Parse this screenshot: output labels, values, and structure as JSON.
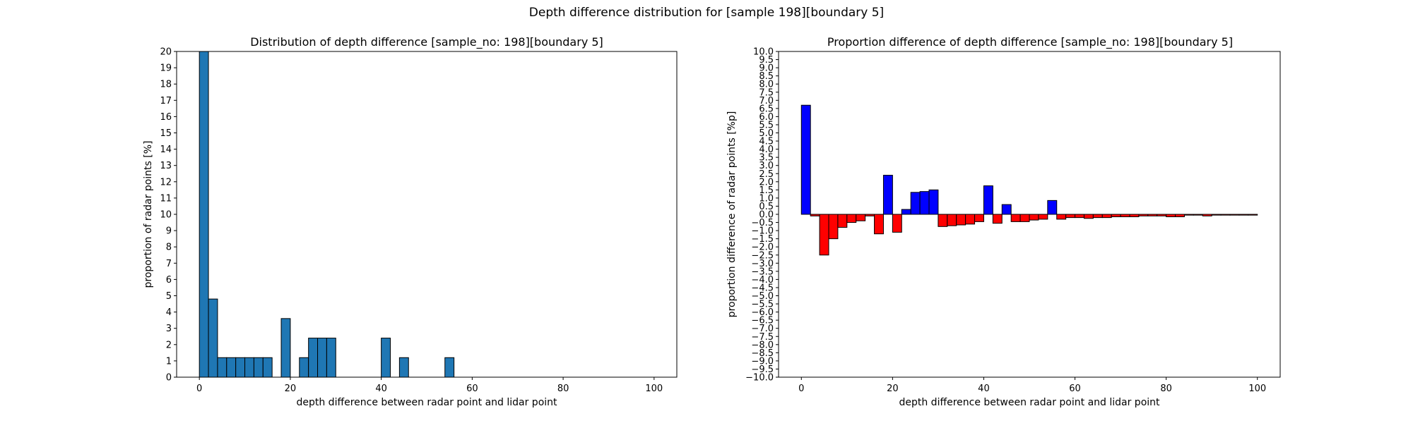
{
  "figure": {
    "suptitle": "Depth difference distribution for [sample 198][boundary 5]"
  },
  "chart_data": [
    {
      "type": "bar",
      "title": "Distribution of depth difference [sample_no: 198][boundary 5]",
      "xlabel": "depth difference between radar point and lidar point",
      "ylabel": "proportion of radar points [%]",
      "xlim": [
        -5,
        105
      ],
      "ylim": [
        0,
        20
      ],
      "xticks": [
        0,
        20,
        40,
        60,
        80,
        100
      ],
      "yticks": [
        0,
        1,
        2,
        3,
        4,
        5,
        6,
        7,
        8,
        9,
        10,
        11,
        12,
        13,
        14,
        15,
        16,
        17,
        18,
        19,
        20
      ],
      "bin_width": 2,
      "bar_color": "#1f77b4",
      "edge_color": "#000000",
      "grid": false,
      "bins": [
        0,
        2,
        4,
        6,
        8,
        10,
        12,
        14,
        18,
        22,
        24,
        26,
        28,
        40,
        44,
        54
      ],
      "values": [
        20.0,
        4.8,
        1.2,
        1.2,
        1.2,
        1.2,
        1.2,
        1.2,
        3.6,
        1.2,
        2.4,
        2.4,
        2.4,
        2.4,
        1.2,
        1.2
      ]
    },
    {
      "type": "bar",
      "title": "Proportion difference of depth difference [sample_no: 198][boundary 5]",
      "xlabel": "depth difference between radar point and lidar point",
      "ylabel": "proportion difference of radar points [%p]",
      "xlim": [
        -5,
        105
      ],
      "ylim": [
        -10,
        10
      ],
      "xticks": [
        0,
        20,
        40,
        60,
        80,
        100
      ],
      "yticks": [
        -10.0,
        -9.5,
        -9.0,
        -8.5,
        -8.0,
        -7.5,
        -7.0,
        -6.5,
        -6.0,
        -5.5,
        -5.0,
        -4.5,
        -4.0,
        -3.5,
        -3.0,
        -2.5,
        -2.0,
        -1.5,
        -1.0,
        -0.5,
        0.0,
        0.5,
        1.0,
        1.5,
        2.0,
        2.5,
        3.0,
        3.5,
        4.0,
        4.5,
        5.0,
        5.5,
        6.0,
        6.5,
        7.0,
        7.5,
        8.0,
        8.5,
        9.0,
        9.5,
        10.0
      ],
      "bin_width": 2,
      "positive_color": "#0000ff",
      "negative_color": "#ff0000",
      "edge_color": "#000000",
      "grid": false,
      "bins": [
        0,
        2,
        4,
        6,
        8,
        10,
        12,
        14,
        16,
        18,
        20,
        22,
        24,
        26,
        28,
        30,
        32,
        34,
        36,
        38,
        40,
        42,
        44,
        46,
        48,
        50,
        52,
        54,
        56,
        58,
        60,
        62,
        64,
        66,
        68,
        70,
        72,
        74,
        76,
        78,
        80,
        82,
        84,
        86,
        88,
        90,
        92,
        94,
        96,
        98
      ],
      "values": [
        6.7,
        -0.1,
        -2.5,
        -1.5,
        -0.8,
        -0.5,
        -0.4,
        -0.1,
        -1.2,
        2.4,
        -1.1,
        0.3,
        1.35,
        1.4,
        1.5,
        -0.75,
        -0.7,
        -0.65,
        -0.6,
        -0.45,
        1.75,
        -0.55,
        0.6,
        -0.45,
        -0.45,
        -0.35,
        -0.3,
        0.85,
        -0.3,
        -0.2,
        -0.2,
        -0.25,
        -0.2,
        -0.2,
        -0.15,
        -0.15,
        -0.15,
        -0.1,
        -0.1,
        -0.1,
        -0.15,
        -0.15,
        -0.05,
        -0.05,
        -0.1,
        -0.05,
        -0.05,
        -0.05,
        -0.05,
        -0.05
      ]
    }
  ]
}
